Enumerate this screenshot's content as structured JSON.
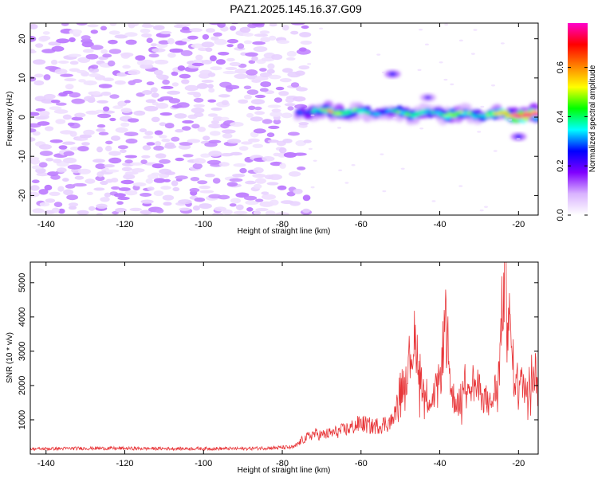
{
  "figure": {
    "title": "PAZ1.2025.145.16.37.G09"
  },
  "chart_data": [
    {
      "type": "heatmap",
      "title": "PAZ1.2025.145.16.37.G09",
      "xlabel": "Height of straight line (km)",
      "ylabel": "Frequency (Hz)",
      "xlim": [
        -144,
        -15
      ],
      "ylim": [
        -25,
        24
      ],
      "xticks": [
        -140,
        -120,
        -100,
        -80,
        -60,
        -40,
        -20
      ],
      "yticks": [
        -20,
        -10,
        0,
        10,
        20
      ],
      "colorbar": {
        "label": "Normalized spectral amplitude",
        "range": [
          0,
          0.78
        ],
        "ticks": [
          0.0,
          0.2,
          0.4,
          0.6
        ],
        "colors": [
          "#ffffff",
          "#d9b3ff",
          "#8000ff",
          "#0000ff",
          "#00ffff",
          "#00ff00",
          "#ffff00",
          "#ff8000",
          "#ff0000",
          "#ff00cc"
        ]
      },
      "noise_region": {
        "x": [
          -144,
          -76
        ],
        "y": [
          -25,
          24
        ],
        "amplitude": [
          0.03,
          0.12
        ]
      },
      "signal_band": {
        "x": [
          -76,
          -15
        ],
        "frequency": [
          1.5,
          0.5
        ],
        "amplitude_points": [
          {
            "x": -74,
            "amp": 0.25
          },
          {
            "x": -68,
            "amp": 0.55
          },
          {
            "x": -62,
            "amp": 0.4
          },
          {
            "x": -55,
            "amp": 0.3
          },
          {
            "x": -48,
            "amp": 0.45
          },
          {
            "x": -42,
            "amp": 0.3
          },
          {
            "x": -36,
            "amp": 0.5
          },
          {
            "x": -30,
            "amp": 0.35
          },
          {
            "x": -24,
            "amp": 0.55
          },
          {
            "x": -18,
            "amp": 0.78
          }
        ]
      },
      "secondary_features": [
        {
          "x": -52,
          "y": 11,
          "amp": 0.25
        },
        {
          "x": -43,
          "y": 5,
          "amp": 0.2
        },
        {
          "x": -20,
          "y": -5,
          "amp": 0.25
        }
      ],
      "grid": false
    },
    {
      "type": "line",
      "xlabel": "Height of straight line (km)",
      "ylabel": "SNR (10 * v/v)",
      "xlim": [
        -144,
        -15
      ],
      "ylim": [
        0,
        5600
      ],
      "xticks": [
        -140,
        -120,
        -100,
        -80,
        -60,
        -40,
        -20
      ],
      "yticks": [
        1000,
        2000,
        3000,
        4000,
        5000
      ],
      "grid": false,
      "series": [
        {
          "color": "#e8373a",
          "x": [
            -144,
            -130,
            -110,
            -90,
            -77,
            -75,
            -72,
            -70,
            -66,
            -63,
            -60,
            -57,
            -55,
            -52,
            -50,
            -48,
            -46.5,
            -45.5,
            -44,
            -42,
            -40,
            -38.5,
            -37,
            -35,
            -33,
            -31,
            -29,
            -27,
            -25,
            -24.2,
            -23.5,
            -22,
            -21,
            -19,
            -17,
            -15
          ],
          "y": [
            150,
            170,
            160,
            160,
            200,
            400,
            600,
            550,
            650,
            750,
            900,
            800,
            850,
            950,
            1900,
            2600,
            3300,
            2900,
            1800,
            1600,
            2100,
            4000,
            1700,
            1500,
            2300,
            2000,
            1700,
            1400,
            2300,
            4100,
            5500,
            3300,
            2200,
            2000,
            2300,
            2500
          ],
          "noise_amplitude": 0.3
        }
      ]
    }
  ]
}
